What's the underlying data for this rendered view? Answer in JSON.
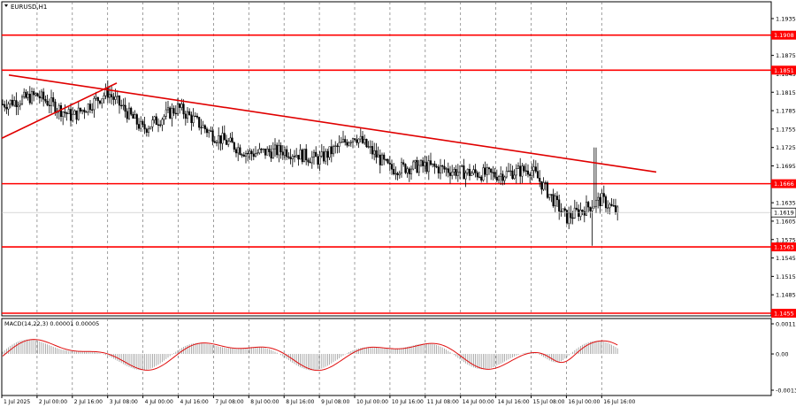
{
  "chart_data": [
    {
      "type": "candlestick",
      "title": "EURUSD,H1",
      "ylim": [
        1.1425,
        1.196
      ],
      "y_ticks": [
        "1.1935",
        "1.1905",
        "1.1875",
        "1.1845",
        "1.1815",
        "1.1785",
        "1.1755",
        "1.1725",
        "1.1695",
        "1.1665",
        "1.1635",
        "1.1605",
        "1.1575",
        "1.1545",
        "1.1515",
        "1.1485",
        "1.1455"
      ],
      "x_ticks": [
        "1 Jul 2025",
        "2 Jul 00:00",
        "2 Jul 16:00",
        "3 Jul 08:00",
        "4 Jul 00:00",
        "4 Jul 16:00",
        "7 Jul 08:00",
        "8 Jul 00:00",
        "8 Jul 16:00",
        "9 Jul 08:00",
        "10 Jul 00:00",
        "10 Jul 16:00",
        "11 Jul 08:00",
        "14 Jul 00:00",
        "14 Jul 16:00",
        "15 Jul 08:00",
        "16 Jul 00:00",
        "16 Jul 16:00"
      ],
      "current_price": "1.1619",
      "levels": [
        {
          "value": 1.1908,
          "label": "1.1908"
        },
        {
          "value": 1.1851,
          "label": "1.1851"
        },
        {
          "value": 1.1666,
          "label": "1.1666"
        },
        {
          "value": 1.1563,
          "label": "1.1563"
        },
        {
          "value": 1.1455,
          "label": "1.1455"
        }
      ],
      "trendlines": [
        {
          "from": [
            "1 Jul 2025",
            1.1843
          ],
          "to": [
            "16 Jul 16:00+",
            1.1685
          ]
        },
        {
          "from": [
            "1 Jul 2025",
            1.174
          ],
          "to": [
            "3 Jul 08:00",
            1.183
          ]
        }
      ],
      "close_path": [
        [
          "1 Jul 2025",
          1.1795
        ],
        [
          "2 Jul 00:00",
          1.181
        ],
        [
          "2 Jul 16:00",
          1.1775
        ],
        [
          "3 Jul 08:00",
          1.1815
        ],
        [
          "4 Jul 00:00",
          1.1755
        ],
        [
          "4 Jul 16:00",
          1.179
        ],
        [
          "7 Jul 08:00",
          1.1745
        ],
        [
          "8 Jul 00:00",
          1.1715
        ],
        [
          "8 Jul 16:00",
          1.172
        ],
        [
          "9 Jul 08:00",
          1.1705
        ],
        [
          "10 Jul 00:00",
          1.1745
        ],
        [
          "10 Jul 16:00",
          1.169
        ],
        [
          "11 Jul 08:00",
          1.1695
        ],
        [
          "14 Jul 00:00",
          1.1685
        ],
        [
          "14 Jul 16:00",
          1.168
        ],
        [
          "15 Jul 08:00",
          1.169
        ],
        [
          "16 Jul 00:00",
          1.161
        ],
        [
          "16 Jul 16:00",
          1.164
        ],
        [
          "16 Jul 20:00",
          1.1619
        ]
      ],
      "spike": {
        "high": 1.1725,
        "low": 1.1565
      }
    },
    {
      "type": "histogram",
      "title": "MACD(14,22,3) 0.00001 0.00005",
      "ylim": [
        -0.0014,
        0.00118
      ],
      "y_ticks": [
        "0.00113",
        "0.00",
        "-0.00136"
      ],
      "signal_color": "#e01010",
      "hist_color": "#9a9a9a"
    }
  ],
  "colors": {
    "level": "#ff0000",
    "trend": "#e00000",
    "grid": "#777777",
    "candle": "#000000",
    "price_box": "#ffffff"
  }
}
